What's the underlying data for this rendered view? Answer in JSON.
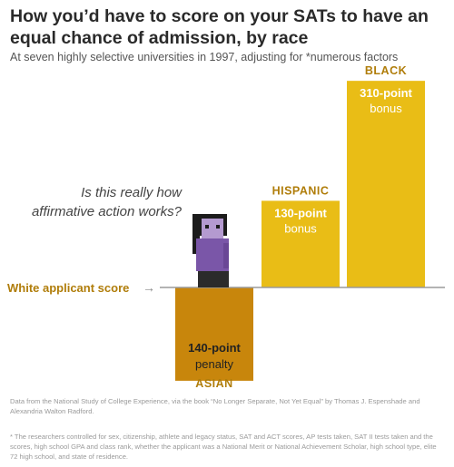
{
  "title": "How you’d have to score on your SATs to have an equal chance of admission, by race",
  "subtitle": "At seven highly selective universities in 1997, adjusting for *numerous factors",
  "annotation": "Is this really how affirmative action works?",
  "source": "Data from the National Study of College Experience, via the book “No Longer Separate, Not Yet Equal” by Thomas J. Espenshade and Alexandria Walton Radford.",
  "footnote": "* The researchers controlled for sex, citizenship, athlete and legacy status, SAT and ACT scores, AP tests taken, SAT II tests taken and the scores, high school GPA and class rank, whether the applicant was a National Merit or National Achievement Scholar, high school type, elite 72 high school, and state of residence.",
  "colors": {
    "gold": "#e9bd16",
    "orange": "#c8860c",
    "baseline_text": "#b07d0a",
    "dark_text": "#222222"
  },
  "chart_data": {
    "type": "bar",
    "baseline_label": "White applicant score",
    "baseline_arrow": "→",
    "categories": [
      "ASIAN",
      "HISPANIC",
      "BLACK"
    ],
    "values": [
      -140,
      130,
      310
    ],
    "value_labels": [
      "140-point",
      "130-point",
      "310-point"
    ],
    "value_sublabels": [
      "penalty",
      "bonus",
      "bonus"
    ],
    "ylim": [
      -140,
      310
    ]
  }
}
